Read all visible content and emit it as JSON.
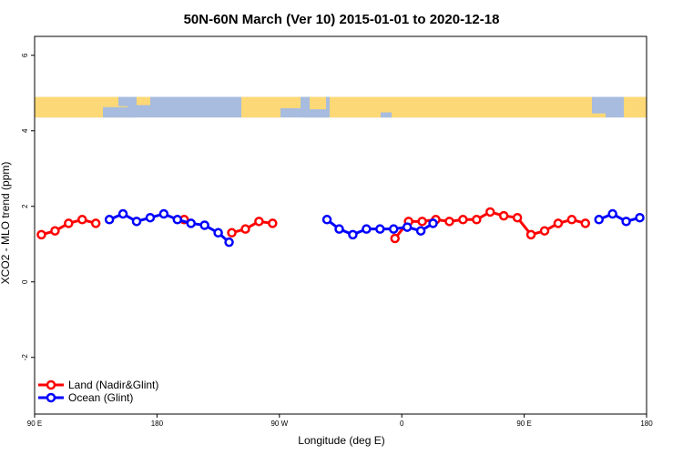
{
  "chart_data": {
    "type": "line",
    "title": "50N-60N March (Ver 10)   2015-01-01 to 2020-12-18",
    "xlabel": "Longitude (deg E)",
    "ylabel": "XCO2 - MLO trend (ppm)",
    "xlim": [
      90,
      540
    ],
    "ylim": [
      -3.5,
      6.5
    ],
    "x_ticks": [
      {
        "value": 90,
        "label": "90 E"
      },
      {
        "value": 180,
        "label": "180"
      },
      {
        "value": 270,
        "label": "90 W"
      },
      {
        "value": 360,
        "label": "0"
      },
      {
        "value": 450,
        "label": "90 E"
      },
      {
        "value": 540,
        "label": "180"
      }
    ],
    "y_ticks": [
      {
        "value": -2,
        "label": "-2"
      },
      {
        "value": 0,
        "label": "0"
      },
      {
        "value": 2,
        "label": "2"
      },
      {
        "value": 4,
        "label": "4"
      },
      {
        "value": 6,
        "label": "6"
      }
    ],
    "legend_position": "bottom-left",
    "map_strip": {
      "y_range": [
        4.35,
        4.9
      ],
      "land_color": "#fdd876",
      "ocean_color": "#a7bcde"
    },
    "series": [
      {
        "name": "Land (Nadir&Glint)",
        "color": "#ff0000",
        "segments": [
          [
            [
              95,
              1.25
            ],
            [
              105,
              1.35
            ],
            [
              115,
              1.55
            ],
            [
              125,
              1.65
            ],
            [
              135,
              1.55
            ]
          ],
          [
            [
              200,
              1.65
            ]
          ],
          [
            [
              235,
              1.3
            ],
            [
              245,
              1.4
            ],
            [
              255,
              1.6
            ],
            [
              265,
              1.55
            ]
          ],
          [
            [
              355,
              1.15
            ],
            [
              365,
              1.6
            ],
            [
              375,
              1.6
            ],
            [
              385,
              1.65
            ],
            [
              395,
              1.6
            ],
            [
              405,
              1.65
            ],
            [
              415,
              1.65
            ],
            [
              425,
              1.85
            ],
            [
              435,
              1.75
            ],
            [
              445,
              1.7
            ],
            [
              455,
              1.25
            ],
            [
              465,
              1.35
            ],
            [
              475,
              1.55
            ],
            [
              485,
              1.65
            ],
            [
              495,
              1.55
            ]
          ]
        ]
      },
      {
        "name": "Ocean (Glint)",
        "color": "#0000ff",
        "segments": [
          [
            [
              145,
              1.65
            ],
            [
              155,
              1.8
            ],
            [
              165,
              1.6
            ],
            [
              175,
              1.7
            ],
            [
              185,
              1.8
            ],
            [
              195,
              1.65
            ],
            [
              205,
              1.55
            ],
            [
              215,
              1.5
            ],
            [
              225,
              1.3
            ],
            [
              233,
              1.05
            ]
          ],
          [
            [
              305,
              1.65
            ],
            [
              314,
              1.4
            ],
            [
              324,
              1.25
            ],
            [
              334,
              1.4
            ],
            [
              344,
              1.4
            ],
            [
              354,
              1.4
            ],
            [
              364,
              1.45
            ],
            [
              374,
              1.35
            ],
            [
              383,
              1.55
            ]
          ],
          [
            [
              505,
              1.65
            ],
            [
              515,
              1.8
            ],
            [
              525,
              1.6
            ],
            [
              535,
              1.7
            ]
          ]
        ]
      }
    ]
  }
}
